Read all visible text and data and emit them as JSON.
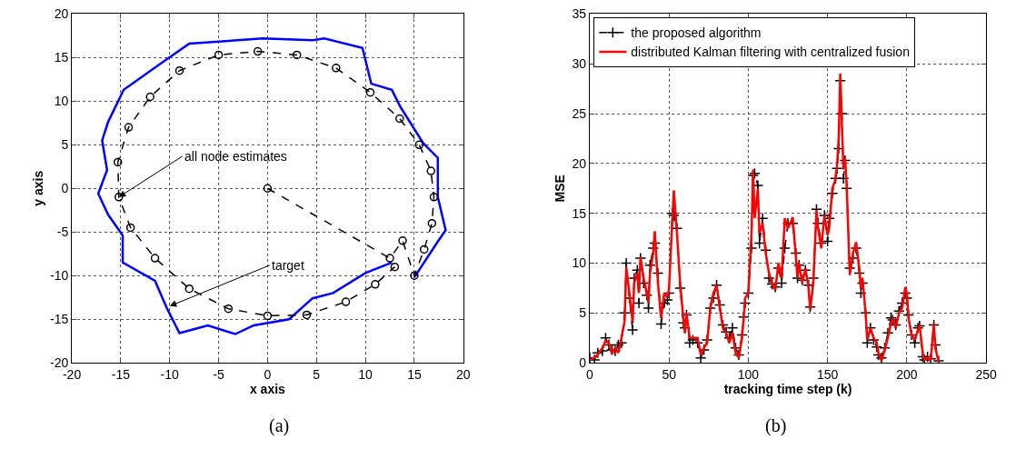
{
  "chart_data": [
    {
      "type": "line",
      "xlabel": "x axis",
      "ylabel": "y axis",
      "xlim": [
        -20,
        20
      ],
      "ylim": [
        -20,
        20
      ],
      "xticks": [
        -20,
        -15,
        -10,
        -5,
        0,
        5,
        10,
        15,
        20
      ],
      "yticks": [
        -20,
        -15,
        -10,
        -5,
        0,
        5,
        10,
        15,
        20
      ],
      "grid": true,
      "legend": false,
      "series": [
        {
          "color": "#0000ff",
          "marker": "none",
          "line_style": "solid",
          "x": [
            15,
            17.4,
            18.2,
            17.4,
            17.4,
            15.9,
            13.6,
            12.7,
            10.6,
            9.7,
            5.8,
            4.6,
            -0.5,
            -5.3,
            -8,
            -11.2,
            -14.7,
            -16.3,
            -16.9,
            -16.4,
            -17.3,
            -16.3,
            -14.8,
            -14.8,
            -11.5,
            -10.3,
            -9,
            -6.1,
            -3.3,
            -1.4,
            2.2,
            4.6,
            6.7,
            10,
            12.7
          ],
          "values": [
            -10.2,
            -6.1,
            -4.8,
            -1,
            3.5,
            5.2,
            9.3,
            11.3,
            12,
            16.1,
            17.2,
            17,
            17.2,
            16.8,
            16.6,
            14.1,
            11.3,
            7.6,
            5.5,
            2.1,
            -0.6,
            -3,
            -5.4,
            -8.5,
            -10.6,
            -13.7,
            -16.6,
            -15.7,
            -16.7,
            -15.7,
            -15,
            -12.6,
            -12,
            -9.7,
            -8.5
          ]
        },
        {
          "color": "#000000",
          "marker": "circle",
          "line_style": "dashed",
          "x": [
            0,
            12.5,
            13.8,
            15,
            16,
            16.8,
            17,
            16.7,
            15.5,
            13.5,
            10.5,
            7,
            3,
            -1,
            -5,
            -9,
            -12,
            -14.2,
            -15.3,
            -15.2,
            -14,
            -11.5,
            -8,
            -4,
            0,
            4,
            8,
            11,
            13
          ],
          "values": [
            0,
            -8,
            -6,
            -10,
            -7,
            -4,
            -1,
            2,
            5,
            8,
            11,
            13.8,
            15.3,
            15.7,
            15.3,
            13.5,
            10.5,
            7,
            3,
            -1,
            -4.5,
            -8,
            -11.5,
            -13.8,
            -14.6,
            -14.5,
            -13,
            -11,
            -9
          ]
        }
      ],
      "annotations": [
        {
          "text": "all node estimates",
          "x": -15.2,
          "y": -1
        },
        {
          "text": "target",
          "x": -10,
          "y": -13.5
        },
        "(a)"
      ]
    },
    {
      "type": "line",
      "xlabel": "tracking time step (k)",
      "ylabel": "MSE",
      "xlim": [
        0,
        250
      ],
      "ylim": [
        0,
        35
      ],
      "xticks": [
        0,
        50,
        100,
        150,
        200,
        250
      ],
      "yticks": [
        0,
        5,
        10,
        15,
        20,
        25,
        30,
        35
      ],
      "grid": true,
      "legend": "top left",
      "x": [
        0,
        3,
        5,
        8,
        10,
        12,
        14,
        16,
        18,
        20,
        22,
        23,
        25,
        27,
        28,
        30,
        31,
        32,
        34,
        36,
        37,
        38,
        40,
        41,
        43,
        45,
        47,
        49,
        50,
        52,
        53,
        55,
        57,
        59,
        60,
        61,
        63,
        65,
        68,
        70,
        72,
        74,
        76,
        78,
        80,
        82,
        84,
        86,
        88,
        90,
        92,
        94,
        96,
        97,
        98,
        100,
        102,
        103,
        104,
        106,
        107,
        109,
        111,
        113,
        115,
        117,
        119,
        121,
        123,
        125,
        128,
        130,
        131,
        132,
        134,
        136,
        138,
        139,
        141,
        143,
        144,
        146,
        148,
        150,
        151,
        153,
        155,
        156,
        157,
        158,
        159,
        160,
        161,
        162,
        164,
        166,
        168,
        170,
        171,
        172,
        174,
        175,
        177,
        179,
        181,
        182,
        184,
        186,
        188,
        190,
        191,
        193,
        195,
        197,
        199,
        200,
        201,
        203,
        205,
        207,
        208,
        210,
        211,
        213,
        215,
        217,
        218,
        220
      ],
      "series": [
        {
          "name": "the proposed algorithm",
          "color": "#000000",
          "marker": "cross",
          "line_style": "dashed",
          "values": [
            0.5,
            0.3,
            1.0,
            1.2,
            2.5,
            1.8,
            1.3,
            1.2,
            1.8,
            2.0,
            5.0,
            10.0,
            6.5,
            3.3,
            8.5,
            9.3,
            6.0,
            10.5,
            8.0,
            6.8,
            5.5,
            9.8,
            11.5,
            12.0,
            9.0,
            3.9,
            6.0,
            6.3,
            7.0,
            15.0,
            14.8,
            13.5,
            7.5,
            4.0,
            3.5,
            4.8,
            2.0,
            2.3,
            2.0,
            0.5,
            1.3,
            2.3,
            5.5,
            6.5,
            7.8,
            5.8,
            3.8,
            3.1,
            2.5,
            3.5,
            1.5,
            0.8,
            2.8,
            4.6,
            6.0,
            7.0,
            11.5,
            18.8,
            19.0,
            17.8,
            12.0,
            14.5,
            11.3,
            8.5,
            7.9,
            7.6,
            9.5,
            8.0,
            11.5,
            14.0,
            14.0,
            11.0,
            8.5,
            9.8,
            8.3,
            9.3,
            7.8,
            5.6,
            8.5,
            15.4,
            14.0,
            12.0,
            14.8,
            12.2,
            14.5,
            17.0,
            18.5,
            19.5,
            21.5,
            28.3,
            25.0,
            18.5,
            20.3,
            17.5,
            9.5,
            10.5,
            11.5,
            9.0,
            7.0,
            8.0,
            5.0,
            2.0,
            3.5,
            2.3,
            1.6,
            0.8,
            0.5,
            1.5,
            3.0,
            4.5,
            4.3,
            3.8,
            5.2,
            6.0,
            7.0,
            6.5,
            4.8,
            2.8,
            2.0,
            3.5,
            3.7,
            0.6,
            0.3,
            0.6,
            0.4,
            3.8,
            1.8,
            0.2
          ]
        },
        {
          "name": "distributed Kalman filtering with centralized fusion",
          "color": "#ff0000",
          "marker": "none",
          "line_style": "solid",
          "values": [
            0.3,
            0.5,
            0.8,
            1.5,
            2.2,
            2.0,
            0.9,
            1.5,
            1.0,
            2.5,
            4.2,
            9.6,
            7.0,
            4.1,
            8.0,
            9.0,
            7.0,
            10.6,
            8.5,
            7.0,
            6.0,
            9.0,
            11.0,
            13.2,
            8.0,
            4.5,
            7.0,
            6.5,
            7.5,
            14.0,
            17.3,
            13.0,
            8.0,
            4.5,
            3.0,
            5.0,
            2.5,
            2.5,
            2.5,
            0.8,
            1.5,
            2.0,
            5.5,
            7.0,
            7.8,
            5.5,
            3.5,
            3.0,
            2.0,
            3.0,
            1.0,
            0.5,
            2.5,
            4.3,
            6.5,
            7.0,
            13.0,
            19.4,
            14.5,
            17.5,
            13.0,
            14.0,
            11.0,
            9.0,
            8.0,
            7.3,
            10.0,
            8.5,
            14.5,
            13.5,
            14.6,
            10.6,
            8.5,
            10.0,
            8.0,
            9.5,
            7.5,
            5.3,
            8.0,
            15.3,
            13.5,
            11.5,
            14.8,
            12.8,
            13.5,
            17.5,
            18.4,
            19.9,
            22.6,
            29.0,
            24.0,
            19.5,
            20.5,
            18.0,
            8.8,
            11.0,
            12.1,
            9.5,
            7.5,
            8.5,
            4.9,
            2.3,
            3.5,
            2.5,
            2.0,
            1.0,
            0.2,
            1.3,
            2.5,
            4.0,
            4.5,
            3.5,
            5.0,
            5.5,
            7.6,
            7.0,
            4.5,
            2.8,
            2.3,
            3.3,
            3.8,
            1.0,
            0.3,
            0.5,
            0.2,
            3.9,
            1.5,
            0.1
          ]
        }
      ],
      "annotations": [
        "(b)"
      ]
    }
  ]
}
